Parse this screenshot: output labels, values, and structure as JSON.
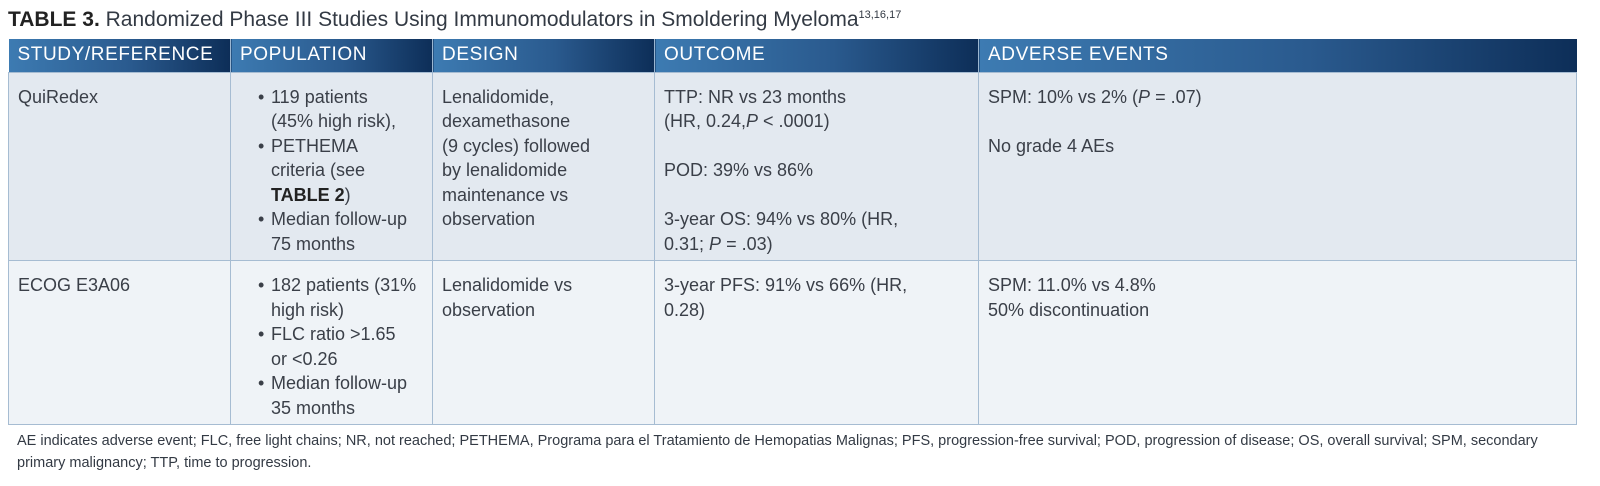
{
  "title": {
    "label": "TABLE 3.",
    "text": "Randomized Phase III Studies Using Immunomodulators in Smoldering Myeloma",
    "refs": "13,16,17"
  },
  "columns": [
    "STUDY/REFERENCE",
    "POPULATION",
    "DESIGN",
    "OUTCOME",
    "ADVERSE EVENTS"
  ],
  "rows": [
    {
      "study": "QuiRedex",
      "population": {
        "b1": [
          "119 patients",
          "(45% high risk),"
        ],
        "b2_pre": [
          "PETHEMA",
          "criteria (see"
        ],
        "b2_ref": "TABLE 2",
        "b2_post": ")",
        "b3": [
          "Median follow-up",
          "75 months"
        ]
      },
      "design": [
        "Lenalidomide,",
        "dexamethasone",
        "(9 cycles) followed",
        "by lenalidomide",
        "maintenance vs",
        "observation"
      ],
      "outcome": {
        "ttp_l1": "TTP: NR vs 23 months",
        "ttp_l2_pre": "(HR, 0.24,",
        "p_symbol": "P",
        "ttp_l2_post": " < .0001)",
        "pod": "POD: 39% vs 86%",
        "os_l1": "3-year OS: 94% vs 80% (HR,",
        "os_l2_pre": "0.31; ",
        "os_l2_post": " = .03)"
      },
      "adverse": {
        "spm_pre": "SPM: 10% vs 2% (",
        "spm_post": " =  .07)",
        "grade": "No grade 4 AEs"
      }
    },
    {
      "study": "ECOG E3A06",
      "population": {
        "b1": [
          "182 patients (31%",
          "high risk)"
        ],
        "b2": [
          "FLC ratio >1.65",
          "or <0.26"
        ],
        "b3": [
          "Median follow-up",
          "35 months"
        ]
      },
      "design": [
        "Lenalidomide vs",
        "observation"
      ],
      "outcome": [
        "3-year PFS: 91% vs 66% (HR,",
        "0.28)"
      ],
      "adverse": [
        "SPM: 11.0% vs 4.8%",
        "50% discontinuation"
      ]
    }
  ],
  "footnote": "AE indicates adverse event; FLC, free light chains; NR, not reached; PETHEMA, Programa para el Tratamiento de Hemopatias Malignas; PFS, progression-free survival; POD, progression of disease; OS, overall survival; SPM, secondary primary malignancy; TTP, time to progression."
}
